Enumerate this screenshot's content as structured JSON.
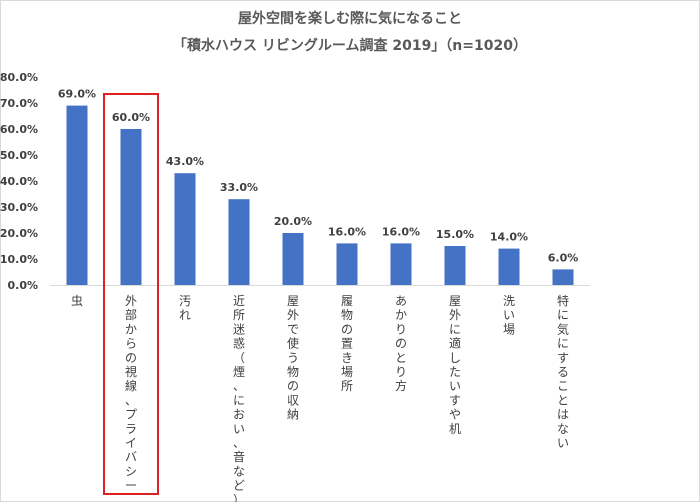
{
  "title_line1": "屋外空間を楽しむ際に気になること",
  "title_line2": "「積水ハウス リビングルーム調査 2019」（n=1020）",
  "highlight_color": "#e02020",
  "bar_color": "#4472c4",
  "highlighted_category": "外部からの視線、プライバシー",
  "chart_data": {
    "type": "bar",
    "title": "屋外空間を楽しむ際に気になること",
    "subtitle": "「積水ハウス リビングルーム調査 2019」（n=1020）",
    "categories": [
      "虫",
      "外部からの視線、プライバシー",
      "汚れ",
      "近所迷惑（煙、におい、音など）",
      "屋外で使う物の収納",
      "履物の置き場所",
      "あかりのとり方",
      "屋外に適したいすや机",
      "洗い場",
      "特に気にすることはない"
    ],
    "values": [
      69.0,
      60.0,
      43.0,
      33.0,
      20.0,
      16.0,
      16.0,
      15.0,
      14.0,
      6.0
    ],
    "value_labels": [
      "69.0%",
      "60.0%",
      "43.0%",
      "33.0%",
      "20.0%",
      "16.0%",
      "16.0%",
      "15.0%",
      "14.0%",
      "6.0%"
    ],
    "ylim": [
      0,
      80
    ],
    "yticks": [
      "0.0%",
      "10.0%",
      "20.0%",
      "30.0%",
      "40.0%",
      "50.0%",
      "60.0%",
      "70.0%",
      "80.0%"
    ],
    "grid": false,
    "legend": "none",
    "xlabel": "",
    "ylabel": ""
  }
}
